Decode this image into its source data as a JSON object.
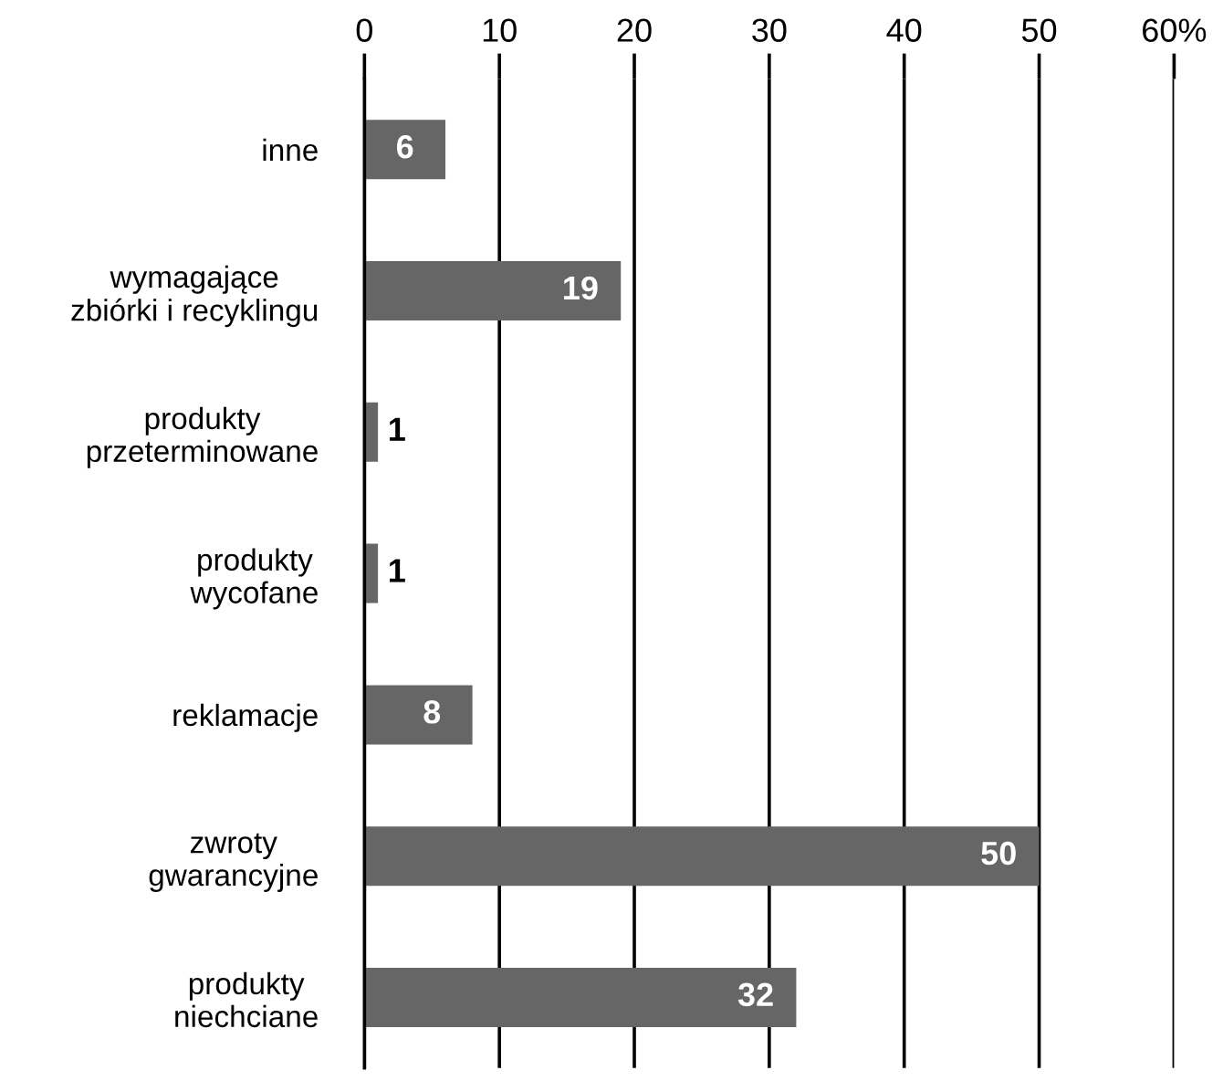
{
  "chart_data": {
    "type": "bar",
    "orientation": "horizontal",
    "categories": [
      "inne",
      "wymagające\nzbiórki i recyklingu",
      "produkty\nprzeterminowane",
      "produkty\nwycofane",
      "reklamacje",
      "zwroty\ngwarancyjne",
      "produkty\nniechciane"
    ],
    "values": [
      6,
      19,
      1,
      1,
      8,
      50,
      32
    ],
    "color": "#666666",
    "xlim": [
      0,
      60
    ],
    "xticks": [
      0,
      10,
      20,
      30,
      40,
      50,
      {
        "value": 60,
        "label": "60%"
      }
    ],
    "grid": "x",
    "data_labels": true
  }
}
